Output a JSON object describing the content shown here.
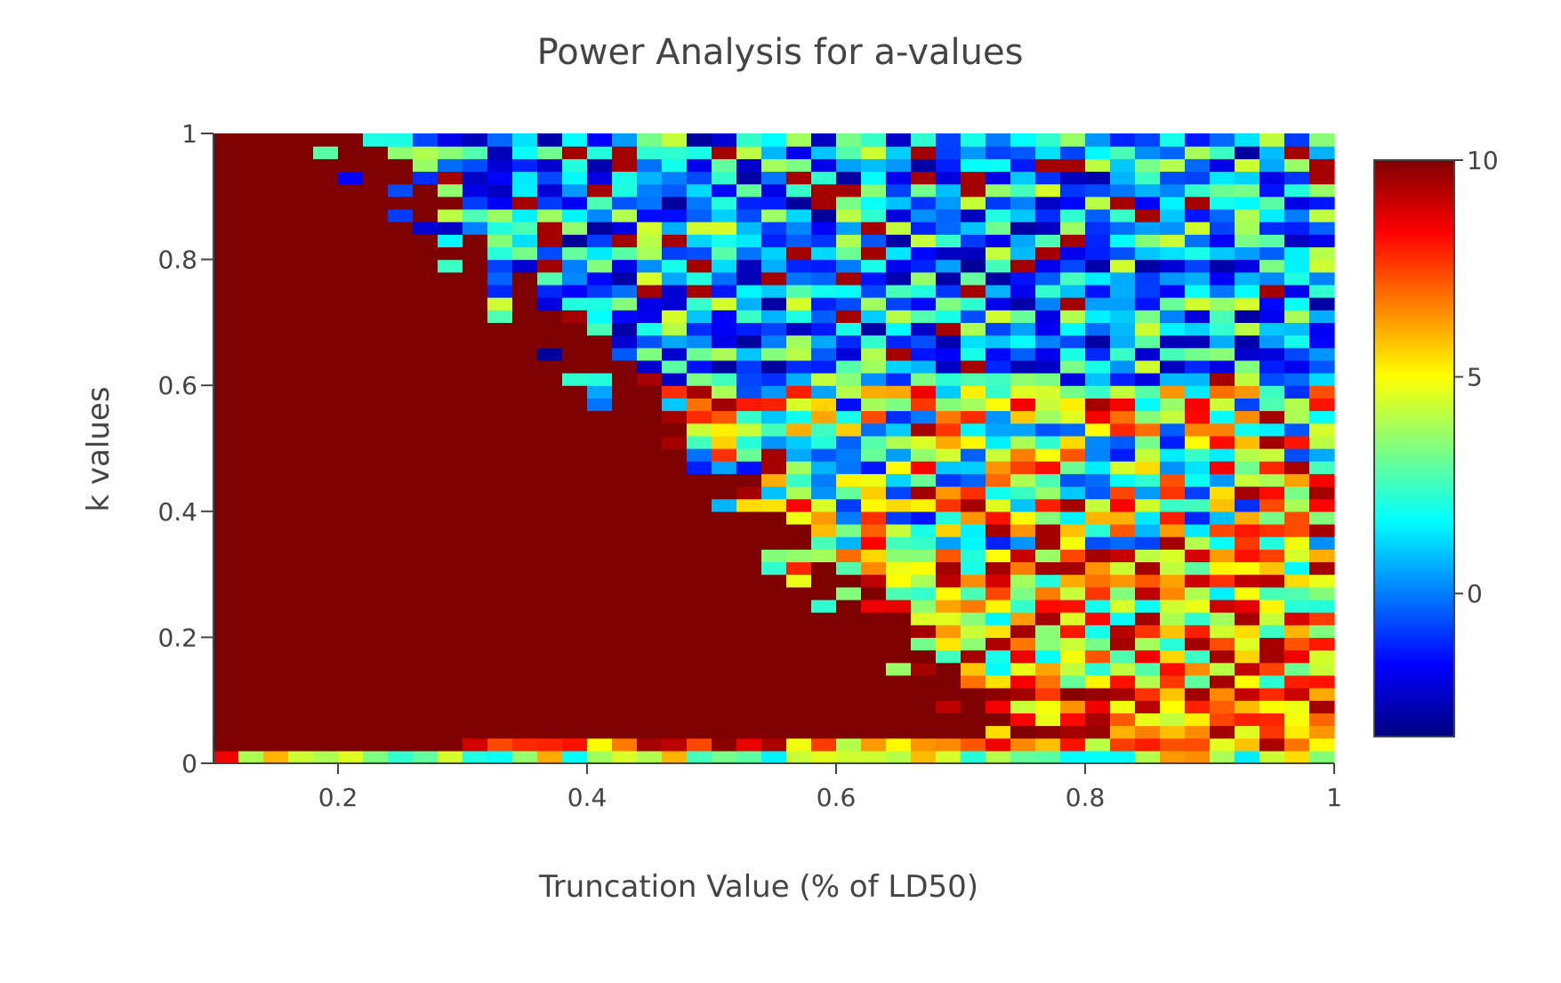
{
  "chart_data": {
    "type": "heatmap",
    "title": "Power Analysis for a-values",
    "xlabel": "Truncation Value (% of LD50)",
    "ylabel": "k values",
    "x_range": [
      0.1,
      1.0
    ],
    "y_range": [
      0,
      1
    ],
    "x_bins": 45,
    "y_bins": 50,
    "x_ticks": [
      {
        "value": 0.2,
        "label": "0.2"
      },
      {
        "value": 0.4,
        "label": "0.4"
      },
      {
        "value": 0.6,
        "label": "0.6"
      },
      {
        "value": 0.8,
        "label": "0.8"
      },
      {
        "value": 1.0,
        "label": "1"
      }
    ],
    "y_ticks": [
      {
        "value": 0,
        "label": "0"
      },
      {
        "value": 0.2,
        "label": "0.2"
      },
      {
        "value": 0.4,
        "label": "0.4"
      },
      {
        "value": 0.6,
        "label": "0.6"
      },
      {
        "value": 0.8,
        "label": "0.8"
      },
      {
        "value": 1.0,
        "label": "1"
      }
    ],
    "colorscale": "Jet",
    "zmin": -3.3,
    "zmax": 10,
    "colorbar_ticks": [
      {
        "value": 0,
        "label": "0"
      },
      {
        "value": 5,
        "label": "5"
      },
      {
        "value": 10,
        "label": "10"
      }
    ],
    "saturated_value": 10,
    "frontier_note": "cells left of the frontier x < 0.19 + 0.55*(1-k) (and above the bottom rows) are saturated at 10; right of it, values are scattered in the range -3 to 9, trending higher toward low k"
  },
  "colors": {
    "jet": [
      "#00007f",
      "#0000ff",
      "#007fff",
      "#00ffff",
      "#7fff7f",
      "#ffff00",
      "#ff7f00",
      "#ff0000",
      "#7f0000"
    ],
    "axis_line": "#444444",
    "text": "#444444"
  }
}
